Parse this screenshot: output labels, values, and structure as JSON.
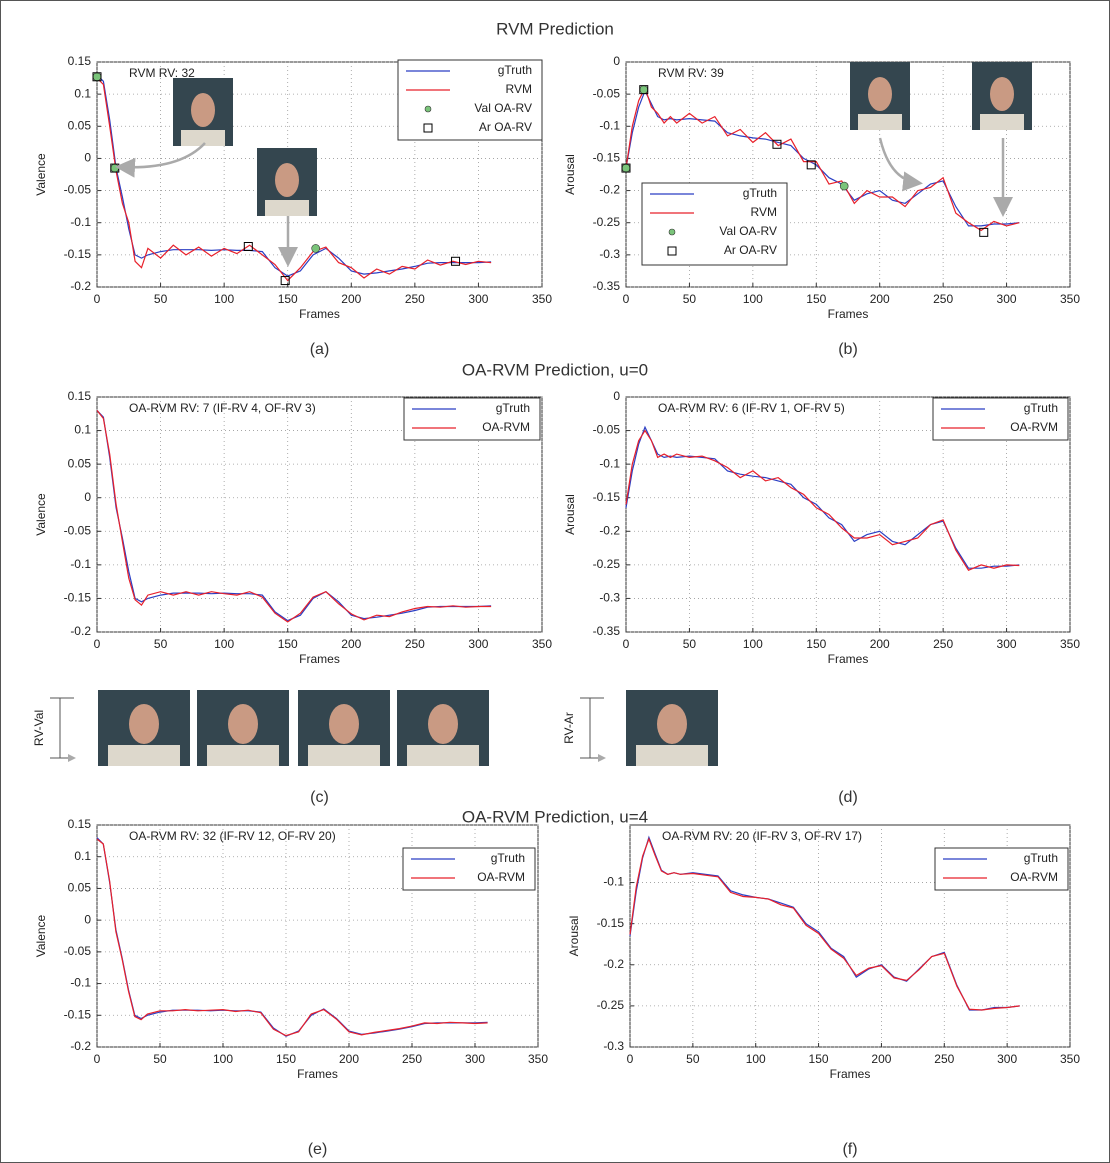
{
  "sections": [
    "RVM Prediction",
    "OA-RVM Prediction, u=0",
    "OA-RVM Prediction, u=4"
  ],
  "face_strips": [
    "RV-Val",
    "RV-Ar"
  ],
  "chart_data": [
    {
      "type": "line",
      "caption": "(a)",
      "annotation": "RVM RV: 32",
      "xlabel": "Frames",
      "ylabel": "Valence",
      "xlim": [
        0,
        350
      ],
      "xticks": [
        0,
        50,
        100,
        150,
        200,
        250,
        300,
        350
      ],
      "ylim": [
        -0.2,
        0.15
      ],
      "yticks": [
        -0.2,
        -0.15,
        -0.1,
        -0.05,
        {
          "value": 0,
          "label": "0"
        },
        0.05,
        0.1,
        0.15
      ],
      "grid": true,
      "x": [
        0,
        5,
        10,
        15,
        20,
        25,
        30,
        35,
        40,
        50,
        60,
        70,
        80,
        90,
        100,
        110,
        120,
        130,
        140,
        150,
        160,
        170,
        180,
        190,
        200,
        210,
        220,
        230,
        240,
        250,
        260,
        270,
        280,
        290,
        300,
        310
      ],
      "series": [
        {
          "name": "gTruth",
          "color": "#2b3fc4",
          "values": [
            0.13,
            0.12,
            0.06,
            -0.015,
            -0.06,
            -0.11,
            -0.15,
            -0.155,
            -0.15,
            -0.145,
            -0.142,
            -0.142,
            -0.142,
            -0.143,
            -0.142,
            -0.143,
            -0.143,
            -0.145,
            -0.17,
            -0.183,
            -0.175,
            -0.15,
            -0.14,
            -0.155,
            -0.175,
            -0.18,
            -0.178,
            -0.175,
            -0.172,
            -0.168,
            -0.163,
            -0.162,
            -0.162,
            -0.162,
            -0.162,
            -0.161
          ]
        },
        {
          "name": "RVM",
          "color": "#e8202a",
          "values": [
            0.125,
            0.115,
            0.05,
            -0.02,
            -0.07,
            -0.1,
            -0.16,
            -0.17,
            -0.14,
            -0.155,
            -0.135,
            -0.15,
            -0.138,
            -0.152,
            -0.14,
            -0.148,
            -0.135,
            -0.15,
            -0.165,
            -0.19,
            -0.17,
            -0.145,
            -0.138,
            -0.162,
            -0.17,
            -0.186,
            -0.172,
            -0.18,
            -0.168,
            -0.172,
            -0.158,
            -0.166,
            -0.16,
            -0.165,
            -0.16,
            -0.162
          ]
        },
        {
          "name": "Val OA-RV",
          "marker": "circle",
          "color": "#7ac47a",
          "x": [
            0,
            14,
            172
          ],
          "values": [
            0.127,
            -0.015,
            -0.14
          ]
        },
        {
          "name": "Ar OA-RV",
          "marker": "square",
          "color": "#000000",
          "x": [
            0,
            14,
            119,
            148,
            282
          ],
          "values": [
            0.127,
            -0.015,
            -0.137,
            -0.19,
            -0.16
          ]
        }
      ]
    },
    {
      "type": "line",
      "caption": "(b)",
      "annotation": "RVM RV: 39",
      "xlabel": "Frames",
      "ylabel": "Arousal",
      "xlim": [
        0,
        350
      ],
      "xticks": [
        0,
        50,
        100,
        150,
        200,
        250,
        300,
        350
      ],
      "ylim": [
        -0.35,
        0
      ],
      "yticks": [
        -0.35,
        -0.3,
        -0.25,
        -0.2,
        -0.15,
        -0.1,
        -0.05,
        0
      ],
      "grid": true,
      "x": [
        0,
        5,
        10,
        15,
        20,
        25,
        30,
        35,
        40,
        50,
        60,
        70,
        80,
        90,
        100,
        110,
        120,
        130,
        140,
        150,
        160,
        170,
        180,
        190,
        200,
        210,
        220,
        230,
        240,
        250,
        260,
        270,
        280,
        290,
        300,
        310
      ],
      "series": [
        {
          "name": "gTruth",
          "color": "#2b3fc4",
          "values": [
            -0.165,
            -0.11,
            -0.07,
            -0.045,
            -0.065,
            -0.085,
            -0.09,
            -0.088,
            -0.09,
            -0.088,
            -0.09,
            -0.092,
            -0.11,
            -0.115,
            -0.118,
            -0.12,
            -0.125,
            -0.13,
            -0.15,
            -0.16,
            -0.18,
            -0.19,
            -0.215,
            -0.205,
            -0.2,
            -0.215,
            -0.22,
            -0.205,
            -0.19,
            -0.185,
            -0.225,
            -0.255,
            -0.255,
            -0.252,
            -0.252,
            -0.25
          ]
        },
        {
          "name": "RVM",
          "color": "#e8202a",
          "values": [
            -0.165,
            -0.1,
            -0.06,
            -0.04,
            -0.07,
            -0.08,
            -0.095,
            -0.085,
            -0.095,
            -0.08,
            -0.095,
            -0.085,
            -0.115,
            -0.105,
            -0.125,
            -0.11,
            -0.13,
            -0.12,
            -0.155,
            -0.155,
            -0.19,
            -0.185,
            -0.22,
            -0.2,
            -0.21,
            -0.21,
            -0.225,
            -0.2,
            -0.195,
            -0.18,
            -0.235,
            -0.25,
            -0.262,
            -0.248,
            -0.255,
            -0.25
          ]
        },
        {
          "name": "Val OA-RV",
          "marker": "circle",
          "color": "#7ac47a",
          "x": [
            0,
            14,
            172
          ],
          "values": [
            -0.165,
            -0.043,
            -0.193
          ]
        },
        {
          "name": "Ar OA-RV",
          "marker": "square",
          "color": "#000000",
          "x": [
            0,
            14,
            119,
            146,
            282
          ],
          "values": [
            -0.165,
            -0.043,
            -0.128,
            -0.16,
            -0.265
          ]
        }
      ]
    },
    {
      "type": "line",
      "caption": "(c)",
      "annotation": "OA-RVM RV: 7 (IF-RV 4, OF-RV 3)",
      "xlabel": "Frames",
      "ylabel": "Valence",
      "xlim": [
        0,
        350
      ],
      "xticks": [
        0,
        50,
        100,
        150,
        200,
        250,
        300,
        350
      ],
      "ylim": [
        -0.2,
        0.15
      ],
      "yticks": [
        -0.2,
        -0.15,
        -0.1,
        -0.05,
        {
          "value": 0,
          "label": "0"
        },
        0.05,
        0.1,
        0.15
      ],
      "grid": true,
      "x": [
        0,
        5,
        10,
        15,
        20,
        25,
        30,
        35,
        40,
        50,
        60,
        70,
        80,
        90,
        100,
        110,
        120,
        130,
        140,
        150,
        160,
        170,
        180,
        190,
        200,
        210,
        220,
        230,
        240,
        250,
        260,
        270,
        280,
        290,
        300,
        310
      ],
      "series": [
        {
          "name": "gTruth",
          "color": "#2b3fc4",
          "values": [
            0.13,
            0.12,
            0.06,
            -0.015,
            -0.06,
            -0.11,
            -0.15,
            -0.155,
            -0.15,
            -0.145,
            -0.142,
            -0.142,
            -0.142,
            -0.143,
            -0.142,
            -0.143,
            -0.143,
            -0.145,
            -0.17,
            -0.183,
            -0.175,
            -0.15,
            -0.14,
            -0.155,
            -0.175,
            -0.18,
            -0.178,
            -0.175,
            -0.172,
            -0.168,
            -0.163,
            -0.162,
            -0.162,
            -0.162,
            -0.162,
            -0.161
          ]
        },
        {
          "name": "OA-RVM",
          "color": "#e8202a",
          "values": [
            0.13,
            0.118,
            0.065,
            -0.01,
            -0.065,
            -0.12,
            -0.152,
            -0.16,
            -0.145,
            -0.14,
            -0.145,
            -0.14,
            -0.145,
            -0.14,
            -0.143,
            -0.145,
            -0.14,
            -0.148,
            -0.172,
            -0.185,
            -0.172,
            -0.148,
            -0.14,
            -0.158,
            -0.173,
            -0.182,
            -0.175,
            -0.177,
            -0.17,
            -0.165,
            -0.162,
            -0.163,
            -0.161,
            -0.163,
            -0.162,
            -0.162
          ]
        }
      ]
    },
    {
      "type": "line",
      "caption": "(d)",
      "annotation": "OA-RVM RV: 6 (IF-RV 1, OF-RV 5)",
      "xlabel": "Frames",
      "ylabel": "Arousal",
      "xlim": [
        0,
        350
      ],
      "xticks": [
        0,
        50,
        100,
        150,
        200,
        250,
        300,
        350
      ],
      "ylim": [
        -0.35,
        0
      ],
      "yticks": [
        -0.35,
        -0.3,
        -0.25,
        -0.2,
        -0.15,
        -0.1,
        -0.05,
        0
      ],
      "grid": true,
      "x": [
        0,
        5,
        10,
        15,
        20,
        25,
        30,
        35,
        40,
        50,
        60,
        70,
        80,
        90,
        100,
        110,
        120,
        130,
        140,
        150,
        160,
        170,
        180,
        190,
        200,
        210,
        220,
        230,
        240,
        250,
        260,
        270,
        280,
        290,
        300,
        310
      ],
      "series": [
        {
          "name": "gTruth",
          "color": "#2b3fc4",
          "values": [
            -0.165,
            -0.11,
            -0.07,
            -0.045,
            -0.065,
            -0.085,
            -0.09,
            -0.088,
            -0.09,
            -0.088,
            -0.09,
            -0.092,
            -0.11,
            -0.115,
            -0.118,
            -0.12,
            -0.125,
            -0.13,
            -0.15,
            -0.16,
            -0.18,
            -0.19,
            -0.215,
            -0.205,
            -0.2,
            -0.215,
            -0.22,
            -0.205,
            -0.19,
            -0.185,
            -0.225,
            -0.255,
            -0.255,
            -0.252,
            -0.252,
            -0.25
          ]
        },
        {
          "name": "OA-RVM",
          "color": "#e8202a",
          "values": [
            -0.16,
            -0.1,
            -0.065,
            -0.05,
            -0.065,
            -0.09,
            -0.085,
            -0.09,
            -0.085,
            -0.09,
            -0.088,
            -0.095,
            -0.105,
            -0.12,
            -0.11,
            -0.125,
            -0.12,
            -0.135,
            -0.145,
            -0.165,
            -0.175,
            -0.195,
            -0.21,
            -0.21,
            -0.205,
            -0.22,
            -0.215,
            -0.21,
            -0.19,
            -0.183,
            -0.228,
            -0.258,
            -0.25,
            -0.255,
            -0.25,
            -0.251
          ]
        }
      ]
    },
    {
      "type": "line",
      "caption": "(e)",
      "annotation": "OA-RVM RV: 32 (IF-RV 12, OF-RV 20)",
      "xlabel": "Frames",
      "ylabel": "Valence",
      "xlim": [
        0,
        350
      ],
      "xticks": [
        0,
        50,
        100,
        150,
        200,
        250,
        300,
        350
      ],
      "ylim": [
        -0.2,
        0.15
      ],
      "yticks": [
        -0.2,
        -0.15,
        -0.1,
        -0.05,
        {
          "value": 0,
          "label": "0"
        },
        0.05,
        0.1,
        0.15
      ],
      "grid": true,
      "x": [
        0,
        5,
        10,
        15,
        20,
        25,
        30,
        35,
        40,
        50,
        60,
        70,
        80,
        90,
        100,
        110,
        120,
        130,
        140,
        150,
        160,
        170,
        180,
        190,
        200,
        210,
        220,
        230,
        240,
        250,
        260,
        270,
        280,
        290,
        300,
        310
      ],
      "series": [
        {
          "name": "gTruth",
          "color": "#2b3fc4",
          "values": [
            0.13,
            0.12,
            0.06,
            -0.015,
            -0.06,
            -0.11,
            -0.15,
            -0.155,
            -0.15,
            -0.145,
            -0.142,
            -0.142,
            -0.142,
            -0.143,
            -0.142,
            -0.143,
            -0.143,
            -0.145,
            -0.17,
            -0.183,
            -0.175,
            -0.15,
            -0.14,
            -0.155,
            -0.175,
            -0.18,
            -0.178,
            -0.175,
            -0.172,
            -0.168,
            -0.163,
            -0.162,
            -0.162,
            -0.162,
            -0.162,
            -0.161
          ]
        },
        {
          "name": "OA-RVM",
          "color": "#e8202a",
          "values": [
            0.128,
            0.12,
            0.062,
            -0.018,
            -0.062,
            -0.112,
            -0.152,
            -0.157,
            -0.148,
            -0.143,
            -0.143,
            -0.141,
            -0.143,
            -0.142,
            -0.141,
            -0.144,
            -0.142,
            -0.146,
            -0.172,
            -0.182,
            -0.176,
            -0.148,
            -0.141,
            -0.156,
            -0.176,
            -0.181,
            -0.177,
            -0.174,
            -0.171,
            -0.167,
            -0.162,
            -0.163,
            -0.161,
            -0.162,
            -0.163,
            -0.162
          ]
        }
      ]
    },
    {
      "type": "line",
      "caption": "(f)",
      "annotation": "OA-RVM RV: 20 (IF-RV 3, OF-RV 17)",
      "xlabel": "Frames",
      "ylabel": "Arousal",
      "xlim": [
        0,
        350
      ],
      "xticks": [
        0,
        50,
        100,
        150,
        200,
        250,
        300,
        350
      ],
      "ylim": [
        -0.3,
        -0.03
      ],
      "yticks": [
        -0.3,
        -0.25,
        -0.2,
        -0.15,
        -0.1
      ],
      "grid": true,
      "x": [
        0,
        5,
        10,
        15,
        20,
        25,
        30,
        35,
        40,
        50,
        60,
        70,
        80,
        90,
        100,
        110,
        120,
        130,
        140,
        150,
        160,
        170,
        180,
        190,
        200,
        210,
        220,
        230,
        240,
        250,
        260,
        270,
        280,
        290,
        300,
        310
      ],
      "series": [
        {
          "name": "gTruth",
          "color": "#2b3fc4",
          "values": [
            -0.165,
            -0.11,
            -0.07,
            -0.045,
            -0.065,
            -0.085,
            -0.09,
            -0.088,
            -0.09,
            -0.088,
            -0.09,
            -0.092,
            -0.11,
            -0.115,
            -0.118,
            -0.12,
            -0.125,
            -0.13,
            -0.15,
            -0.16,
            -0.18,
            -0.19,
            -0.215,
            -0.205,
            -0.2,
            -0.215,
            -0.22,
            -0.205,
            -0.19,
            -0.185,
            -0.225,
            -0.255,
            -0.255,
            -0.252,
            -0.252,
            -0.25
          ]
        },
        {
          "name": "OA-RVM",
          "color": "#e8202a",
          "values": [
            -0.163,
            -0.105,
            -0.068,
            -0.047,
            -0.067,
            -0.086,
            -0.09,
            -0.088,
            -0.09,
            -0.089,
            -0.091,
            -0.093,
            -0.112,
            -0.117,
            -0.118,
            -0.12,
            -0.127,
            -0.131,
            -0.152,
            -0.162,
            -0.181,
            -0.192,
            -0.213,
            -0.204,
            -0.201,
            -0.216,
            -0.219,
            -0.206,
            -0.19,
            -0.186,
            -0.226,
            -0.254,
            -0.255,
            -0.253,
            -0.252,
            -0.25
          ]
        }
      ]
    }
  ]
}
